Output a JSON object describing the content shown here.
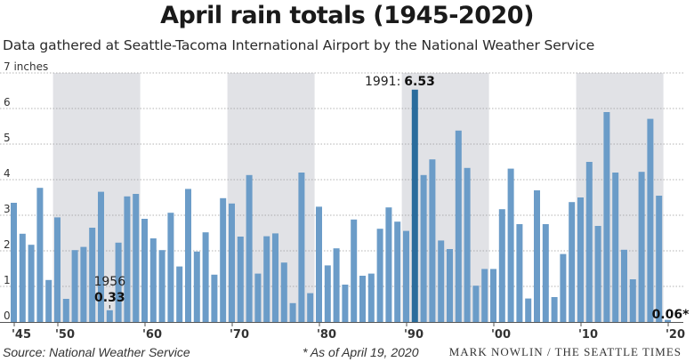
{
  "title": "April rain totals (1945-2020)",
  "subtitle": "Data gathered at Seattle-Tacoma International Airport by the National Weather Service",
  "source": "Source: National Weather Service",
  "footnote": "* As of April 19, 2020",
  "credit": "MARK NOWLIN / THE SEATTLE TIMES",
  "chart_data": {
    "type": "bar",
    "x": [
      1945,
      1946,
      1947,
      1948,
      1949,
      1950,
      1951,
      1952,
      1953,
      1954,
      1955,
      1956,
      1957,
      1958,
      1959,
      1960,
      1961,
      1962,
      1963,
      1964,
      1965,
      1966,
      1967,
      1968,
      1969,
      1970,
      1971,
      1972,
      1973,
      1974,
      1975,
      1976,
      1977,
      1978,
      1979,
      1980,
      1981,
      1982,
      1983,
      1984,
      1985,
      1986,
      1987,
      1988,
      1989,
      1990,
      1991,
      1992,
      1993,
      1994,
      1995,
      1996,
      1997,
      1998,
      1999,
      2000,
      2001,
      2002,
      2003,
      2004,
      2005,
      2006,
      2007,
      2008,
      2009,
      2010,
      2011,
      2012,
      2013,
      2014,
      2015,
      2016,
      2017,
      2018,
      2019,
      2020
    ],
    "values": [
      3.35,
      2.48,
      2.17,
      3.77,
      1.18,
      2.94,
      0.65,
      2.02,
      2.11,
      2.65,
      3.66,
      0.33,
      2.23,
      3.53,
      3.6,
      2.9,
      2.35,
      2.02,
      3.07,
      1.56,
      3.74,
      1.98,
      2.52,
      1.33,
      3.48,
      3.33,
      2.4,
      4.13,
      1.36,
      2.41,
      2.49,
      1.67,
      0.53,
      4.2,
      0.81,
      3.24,
      1.59,
      2.07,
      1.05,
      2.88,
      1.3,
      1.36,
      2.62,
      3.22,
      2.82,
      2.56,
      6.53,
      4.13,
      4.57,
      2.29,
      2.05,
      5.38,
      4.33,
      1.02,
      1.49,
      1.49,
      3.17,
      4.31,
      2.75,
      0.66,
      3.7,
      2.75,
      0.7,
      1.91,
      3.37,
      3.5,
      4.5,
      2.7,
      5.9,
      4.2,
      2.03,
      1.2,
      4.22,
      5.71,
      3.55,
      0.06
    ],
    "unit": "inches",
    "ylim": [
      0,
      7
    ],
    "yticks": [
      {
        "value": 0,
        "label": "0"
      },
      {
        "value": 1,
        "label": "1"
      },
      {
        "value": 2,
        "label": "2"
      },
      {
        "value": 3,
        "label": "3"
      },
      {
        "value": 4,
        "label": "4"
      },
      {
        "value": 5,
        "label": "5"
      },
      {
        "value": 6,
        "label": "6"
      },
      {
        "value": 7,
        "label": "7 inches"
      }
    ],
    "xticks": [
      {
        "year": 1945,
        "label": "'45"
      },
      {
        "year": 1950,
        "label": "'50"
      },
      {
        "year": 1960,
        "label": "'60"
      },
      {
        "year": 1970,
        "label": "'70"
      },
      {
        "year": 1980,
        "label": "'80"
      },
      {
        "year": 1990,
        "label": "'90"
      },
      {
        "year": 2000,
        "label": "'00"
      },
      {
        "year": 2010,
        "label": "'10"
      },
      {
        "year": 2020,
        "label": "'20"
      }
    ],
    "shaded_decades": [
      [
        1950,
        1959
      ],
      [
        1970,
        1979
      ],
      [
        1990,
        1999
      ],
      [
        2010,
        2019
      ]
    ],
    "grid": true,
    "bar_color": "#6b9cc8",
    "highlight_color": "#2a6c9c",
    "shade_color": "#e1e2e6",
    "annotations": [
      {
        "year": 1956,
        "label": "1956",
        "value_label": "0.33"
      },
      {
        "year": 1991,
        "label": "1991:",
        "value_label": "6.53",
        "highlight": true
      },
      {
        "year": 2020,
        "value_label": "0.06*"
      }
    ]
  }
}
